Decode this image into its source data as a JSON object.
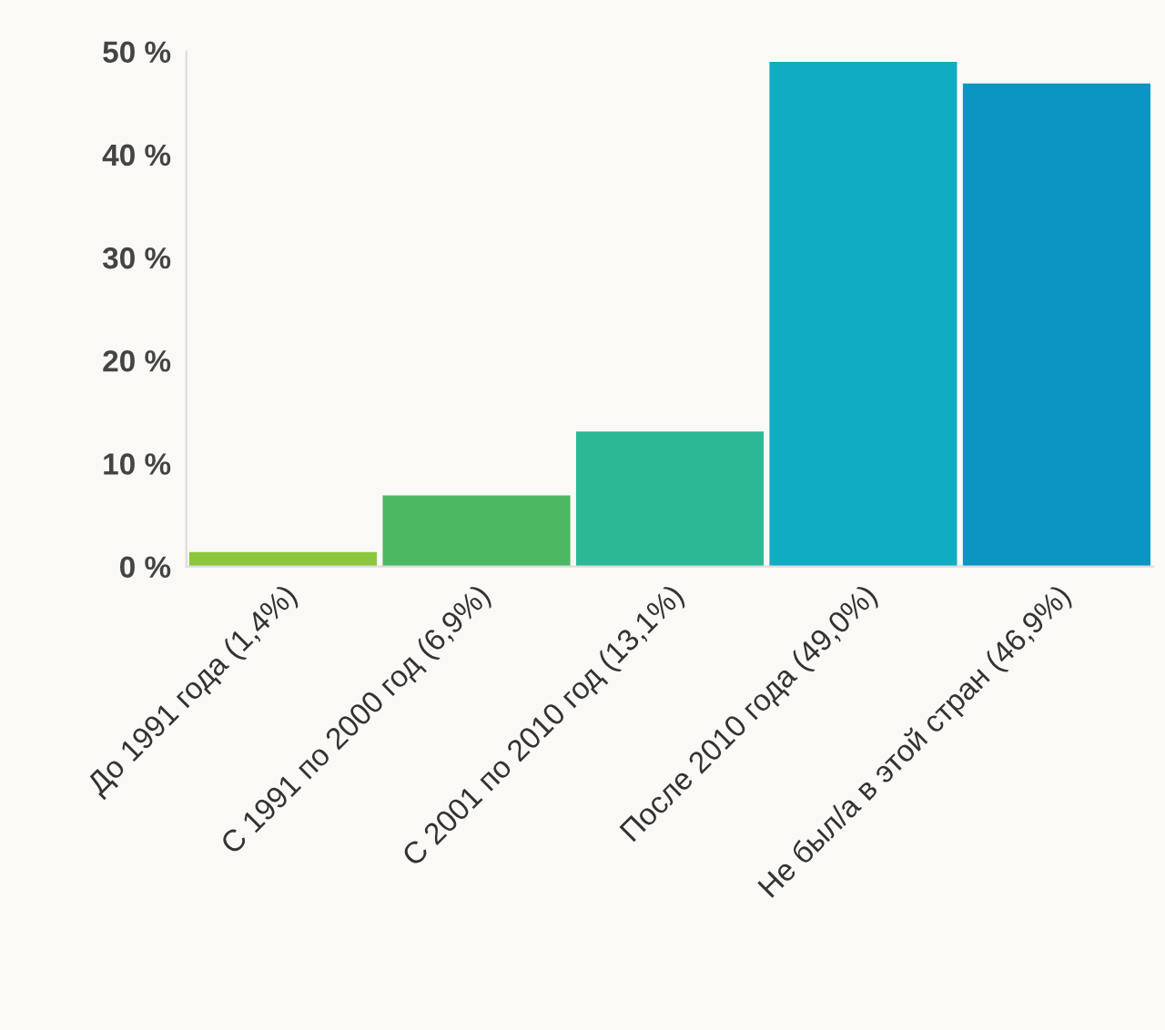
{
  "chart_data": {
    "type": "bar",
    "categories": [
      "До 1991 года (1,4%)",
      "С 1991 по 2000 год (6,9%)",
      "С 2001 по 2010 год (13,1%)",
      "После 2010 года (49,0%)",
      "Не был/а в этой стран (46,9%)"
    ],
    "values": [
      1.4,
      6.9,
      13.1,
      49.0,
      46.9
    ],
    "colors": [
      "#8cc63e",
      "#4cb862",
      "#2ab895",
      "#10adc2",
      "#0a95c2"
    ],
    "ylim": [
      0,
      50
    ],
    "yticks": [
      {
        "value": 0,
        "label": "0 %"
      },
      {
        "value": 10,
        "label": "10 %"
      },
      {
        "value": 20,
        "label": "20 %"
      },
      {
        "value": 30,
        "label": "30 %"
      },
      {
        "value": 40,
        "label": "40 %"
      },
      {
        "value": 50,
        "label": "50 %"
      }
    ],
    "grid": false,
    "legend": false
  }
}
